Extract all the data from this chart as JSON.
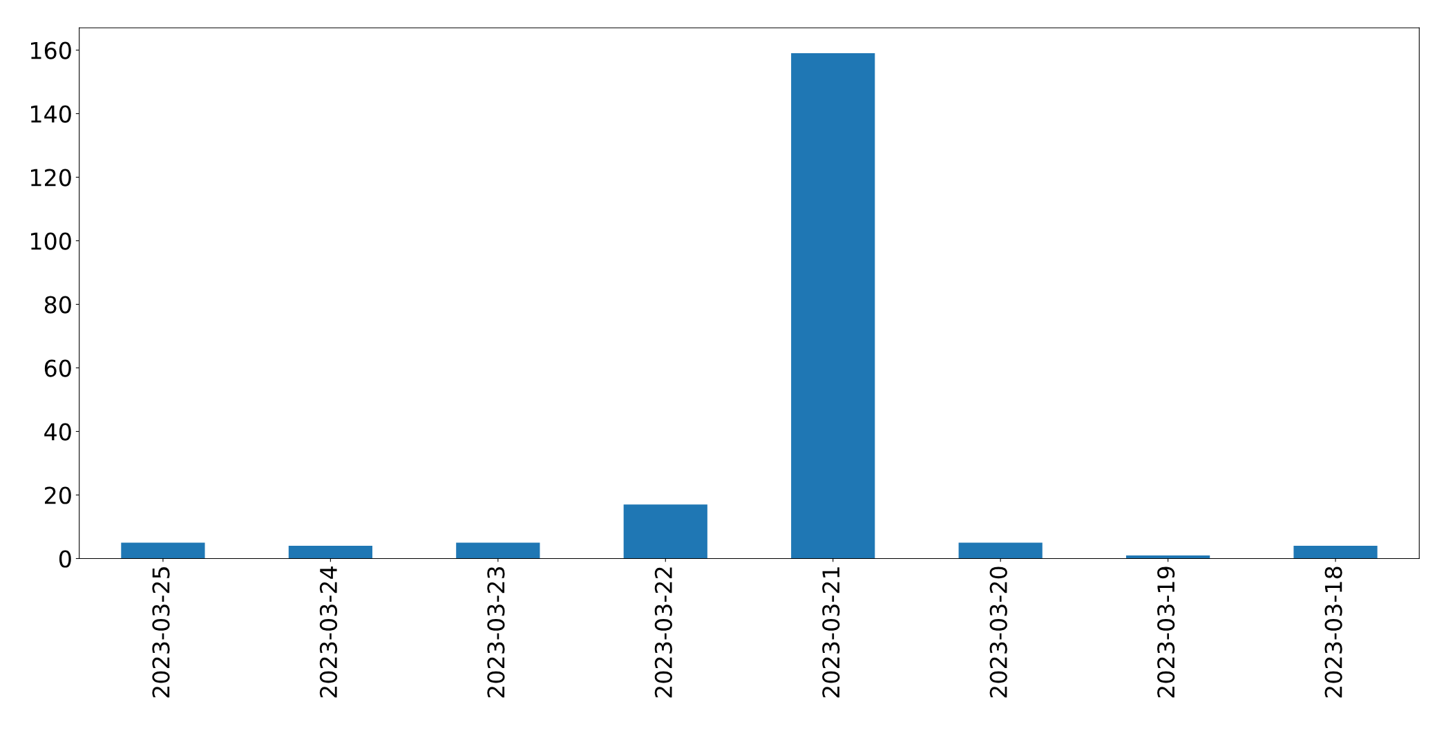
{
  "chart_data": {
    "type": "bar",
    "categories": [
      "2023-03-25",
      "2023-03-24",
      "2023-03-23",
      "2023-03-22",
      "2023-03-21",
      "2023-03-20",
      "2023-03-19",
      "2023-03-18"
    ],
    "values": [
      5,
      4,
      5,
      17,
      159,
      5,
      1,
      4
    ],
    "color": "#1f77b4",
    "ylim": [
      0,
      167
    ],
    "yticks": [
      0,
      20,
      40,
      60,
      80,
      100,
      120,
      140,
      160
    ],
    "grid": false
  }
}
